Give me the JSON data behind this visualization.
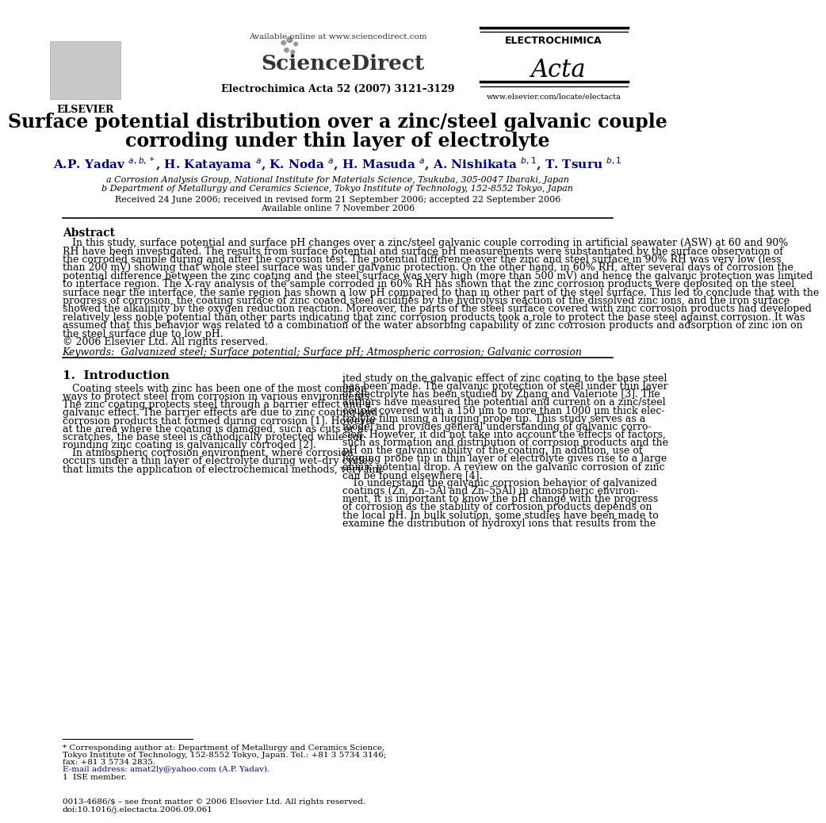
{
  "bg_color": "#ffffff",
  "title_line1": "Surface potential distribution over a zinc/steel galvanic couple",
  "title_line2": "corroding under thin layer of electrolyte",
  "affil_a": "a Corrosion Analysis Group, National Institute for Materials Science, Tsukuba, 305-0047 Ibaraki, Japan",
  "affil_b": "b Department of Metallurgy and Ceramics Science, Tokyo Institute of Technology, 152-8552 Tokyo, Japan",
  "received": "Received 24 June 2006; received in revised form 21 September 2006; accepted 22 September 2006",
  "available": "Available online 7 November 2006",
  "journal": "Electrochimica Acta 52 (2007) 3121–3129",
  "elsevier_text": "ELSEVIER",
  "sd_available": "Available online at www.sciencedirect.com",
  "sciencedirect": "ScienceDirect",
  "electrochimica": "ELECTROCHIMICA",
  "acta_italic": "Acta",
  "website": "www.elsevier.com/locate/electacta",
  "abstract_title": "Abstract",
  "abstract_lines": [
    "   In this study, surface potential and surface pH changes over a zinc/steel galvanic couple corroding in artificial seawater (ASW) at 60 and 90%",
    "RH have been investigated. The results from surface potential and surface pH measurements were substantiated by the surface observation of",
    "the corroded sample during and after the corrosion test. The potential difference over the zinc and steel surface in 90% RH was very low (less",
    "than 200 mV) showing that whole steel surface was under galvanic protection. On the other hand, in 60% RH, after several days of corrosion the",
    "potential difference between the zinc coating and the steel surface was very high (more than 500 mV) and hence the galvanic protection was limited",
    "to interface region. The X-ray analysis of the sample corroded in 60% RH has shown that the zinc corrosion products were deposited on the steel",
    "surface near the interface, the same region has shown a low pH compared to than in other part of the steel surface. This led to conclude that with the",
    "progress of corrosion, the coating surface of zinc coated steel acidifies by the hydrolysis reaction of the dissolved zinc ions, and the iron surface",
    "showed the alkalinity by the oxygen reduction reaction. Moreover, the parts of the steel surface covered with zinc corrosion products had developed",
    "relatively less noble potential than other parts indicating that zinc corrosion products took a role to protect the base steel against corrosion. It was",
    "assumed that this behavior was related to a combination of the water absorbing capability of zinc corrosion products and adsorption of zinc ion on",
    "the steel surface due to low pH.",
    "© 2006 Elsevier Ltd. All rights reserved."
  ],
  "keywords": "Keywords:  Galvanized steel; Surface potential; Surface pH; Atmospheric corrosion; Galvanic corrosion",
  "section1_title": "1.  Introduction",
  "col1_lines": [
    "   Coating steels with zinc has been one of the most common",
    "ways to protect steel from corrosion in various environments.",
    "The zinc coating protects steel through a barrier effect and a",
    "galvanic effect. The barrier effects are due to zinc coating and",
    "corrosion products that formed during corrosion [1]. However,",
    "at the area where the coating is damaged, such as cuts or at",
    "scratches, the base steel is cathodically protected while sur-",
    "rounding zinc coating is galvanically corroded [2].",
    "   In atmospheric corrosion environment, where corrosion",
    "occurs under a thin layer of electrolyte during wet–dry cycles",
    "that limits the application of electrochemical methods, very lim-"
  ],
  "col2_lines": [
    "ited study on the galvanic effect of zinc coating to the base steel",
    "has been made. The galvanic protection of steel under thin layer",
    "of electrolyte has been studied by Zhang and Valeriote [3]. The",
    "authors have measured the potential and current on a zinc/steel",
    "couple covered with a 150 μm to more than 1000 μm thick elec-",
    "trolyte film using a lugging probe tip. This study serves as a",
    "model and provides general understanding of galvanic corro-",
    "sion. However, it did not take into account the effects of factors,",
    "such as formation and distribution of corrosion products and the",
    "pH on the galvanic ability of the coating. In addition, use of",
    "lugging probe tip in thin layer of electrolyte gives rise to a large",
    "ohmic potential drop. A review on the galvanic corrosion of zinc",
    "can be found elsewhere [4].",
    "   To understand the galvanic corrosion behavior of galvanized",
    "coatings (Zn, Zn–5Al and Zn–55Al) in atmospheric environ-",
    "ment, it is important to know the pH change with the progress",
    "of corrosion as the stability of corrosion products depends on",
    "the local pH. In bulk solution, some studies have been made to",
    "examine the distribution of hydroxyl ions that results from the"
  ],
  "fn_lines": [
    "* Corresponding author at: Department of Metallurgy and Ceramics Science,",
    "Tokyo Institute of Technology, 152-8552 Tokyo, Japan. Tel.: +81 3 5734 3146;",
    "fax: +81 3 5734 2835.",
    "E-mail address: amat2ly@yahoo.com (A.P. Yadav).",
    "1  ISE member."
  ],
  "footer1": "0013-4686/$ – see front matter © 2006 Elsevier Ltd. All rights reserved.",
  "footer2": "doi:10.1016/j.electacta.2006.09.061"
}
